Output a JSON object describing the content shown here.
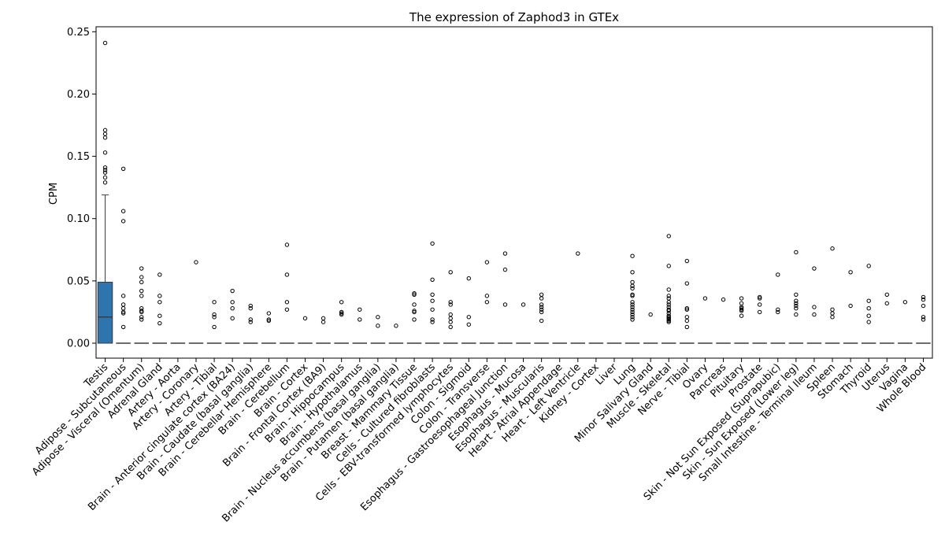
{
  "chart_data": {
    "type": "box",
    "title": "The expression of Zaphod3 in GTEx",
    "xlabel": "",
    "ylabel": "CPM",
    "ylim": [
      -0.012,
      0.254
    ],
    "yticks": [
      0.0,
      0.05,
      0.1,
      0.15,
      0.2,
      0.25
    ],
    "ytick_labels": [
      "0.00",
      "0.05",
      "0.10",
      "0.15",
      "0.20",
      "0.25"
    ],
    "grid": false,
    "box_color": "#2e75b0",
    "categories": [
      "Testis",
      "Adipose - Subcutaneous",
      "Adipose - Visceral (Omentum)",
      "Adrenal Gland",
      "Artery - Aorta",
      "Artery - Coronary",
      "Artery - Tibial",
      "Brain - Anterior cingulate cortex (BA24)",
      "Brain - Caudate (basal ganglia)",
      "Brain - Cerebellar Hemisphere",
      "Brain - Cerebellum",
      "Brain - Cortex",
      "Brain - Frontal Cortex (BA9)",
      "Brain - Hippocampus",
      "Brain - Hypothalamus",
      "Brain - Nucleus accumbens (basal ganglia)",
      "Brain - Putamen (basal ganglia)",
      "Breast - Mammary Tissue",
      "Cells - Cultured fibroblasts",
      "Cells - EBV-transformed lymphocytes",
      "Colon - Sigmoid",
      "Colon - Transverse",
      "Esophagus - Gastroesophageal Junction",
      "Esophagus - Mucosa",
      "Esophagus - Muscularis",
      "Heart - Atrial Appendage",
      "Heart - Left Ventricle",
      "Kidney - Cortex",
      "Liver",
      "Lung",
      "Minor Salivary Gland",
      "Muscle - Skeletal",
      "Nerve - Tibial",
      "Ovary",
      "Pancreas",
      "Pituitary",
      "Prostate",
      "Skin - Not Sun Exposed (Suprapubic)",
      "Skin - Sun Exposed (Lower leg)",
      "Small Intestine - Terminal Ileum",
      "Spleen",
      "Stomach",
      "Thyroid",
      "Uterus",
      "Vagina",
      "Whole Blood"
    ],
    "boxes": [
      {
        "q1": 0.0,
        "median": 0.021,
        "q3": 0.049,
        "whislo": 0.0,
        "whishi": 0.119,
        "fliers": [
          0.241,
          0.171,
          0.168,
          0.165,
          0.153,
          0.141,
          0.139,
          0.137,
          0.133,
          0.129
        ]
      },
      {
        "q1": 0.0,
        "median": 0.0,
        "q3": 0.0,
        "whislo": 0.0,
        "whishi": 0.0,
        "fliers": [
          0.14,
          0.106,
          0.098,
          0.038,
          0.031,
          0.028,
          0.025,
          0.024,
          0.013
        ]
      },
      {
        "q1": 0.0,
        "median": 0.0,
        "q3": 0.0,
        "whislo": 0.0,
        "whishi": 0.0,
        "fliers": [
          0.06,
          0.053,
          0.049,
          0.042,
          0.038,
          0.028,
          0.026,
          0.025,
          0.021,
          0.019
        ]
      },
      {
        "q1": 0.0,
        "median": 0.0,
        "q3": 0.0,
        "whislo": 0.0,
        "whishi": 0.0,
        "fliers": [
          0.055,
          0.038,
          0.033,
          0.022,
          0.016
        ]
      },
      {
        "q1": 0.0,
        "median": 0.0,
        "q3": 0.0,
        "whislo": 0.0,
        "whishi": 0.0,
        "fliers": []
      },
      {
        "q1": 0.0,
        "median": 0.0,
        "q3": 0.0,
        "whislo": 0.0,
        "whishi": 0.0,
        "fliers": [
          0.065
        ]
      },
      {
        "q1": 0.0,
        "median": 0.0,
        "q3": 0.0,
        "whislo": 0.0,
        "whishi": 0.0,
        "fliers": [
          0.033,
          0.023,
          0.021,
          0.013
        ]
      },
      {
        "q1": 0.0,
        "median": 0.0,
        "q3": 0.0,
        "whislo": 0.0,
        "whishi": 0.0,
        "fliers": [
          0.042,
          0.033,
          0.028,
          0.02
        ]
      },
      {
        "q1": 0.0,
        "median": 0.0,
        "q3": 0.0,
        "whislo": 0.0,
        "whishi": 0.0,
        "fliers": [
          0.03,
          0.028,
          0.019,
          0.017
        ]
      },
      {
        "q1": 0.0,
        "median": 0.0,
        "q3": 0.0,
        "whislo": 0.0,
        "whishi": 0.0,
        "fliers": [
          0.024,
          0.019,
          0.018
        ]
      },
      {
        "q1": 0.0,
        "median": 0.0,
        "q3": 0.0,
        "whislo": 0.0,
        "whishi": 0.0,
        "fliers": [
          0.079,
          0.055,
          0.033,
          0.027
        ]
      },
      {
        "q1": 0.0,
        "median": 0.0,
        "q3": 0.0,
        "whislo": 0.0,
        "whishi": 0.0,
        "fliers": [
          0.02
        ]
      },
      {
        "q1": 0.0,
        "median": 0.0,
        "q3": 0.0,
        "whislo": 0.0,
        "whishi": 0.0,
        "fliers": [
          0.02,
          0.017
        ]
      },
      {
        "q1": 0.0,
        "median": 0.0,
        "q3": 0.0,
        "whislo": 0.0,
        "whishi": 0.0,
        "fliers": [
          0.033,
          0.025,
          0.024,
          0.023
        ]
      },
      {
        "q1": 0.0,
        "median": 0.0,
        "q3": 0.0,
        "whislo": 0.0,
        "whishi": 0.0,
        "fliers": [
          0.027,
          0.019
        ]
      },
      {
        "q1": 0.0,
        "median": 0.0,
        "q3": 0.0,
        "whislo": 0.0,
        "whishi": 0.0,
        "fliers": [
          0.021,
          0.014
        ]
      },
      {
        "q1": 0.0,
        "median": 0.0,
        "q3": 0.0,
        "whislo": 0.0,
        "whishi": 0.0,
        "fliers": [
          0.014
        ]
      },
      {
        "q1": 0.0,
        "median": 0.0,
        "q3": 0.0,
        "whislo": 0.0,
        "whishi": 0.0,
        "fliers": [
          0.04,
          0.039,
          0.031,
          0.026,
          0.025,
          0.019
        ]
      },
      {
        "q1": 0.0,
        "median": 0.0,
        "q3": 0.0,
        "whislo": 0.0,
        "whishi": 0.0,
        "fliers": [
          0.08,
          0.051,
          0.039,
          0.034,
          0.027,
          0.019,
          0.017
        ]
      },
      {
        "q1": 0.0,
        "median": 0.0,
        "q3": 0.0,
        "whislo": 0.0,
        "whishi": 0.0,
        "fliers": [
          0.057,
          0.033,
          0.031,
          0.023,
          0.02,
          0.017,
          0.013
        ]
      },
      {
        "q1": 0.0,
        "median": 0.0,
        "q3": 0.0,
        "whislo": 0.0,
        "whishi": 0.0,
        "fliers": [
          0.052,
          0.021,
          0.015
        ]
      },
      {
        "q1": 0.0,
        "median": 0.0,
        "q3": 0.0,
        "whislo": 0.0,
        "whishi": 0.0,
        "fliers": [
          0.065,
          0.038,
          0.033
        ]
      },
      {
        "q1": 0.0,
        "median": 0.0,
        "q3": 0.0,
        "whislo": 0.0,
        "whishi": 0.0,
        "fliers": [
          0.072,
          0.059,
          0.031
        ]
      },
      {
        "q1": 0.0,
        "median": 0.0,
        "q3": 0.0,
        "whislo": 0.0,
        "whishi": 0.0,
        "fliers": [
          0.031
        ]
      },
      {
        "q1": 0.0,
        "median": 0.0,
        "q3": 0.0,
        "whislo": 0.0,
        "whishi": 0.0,
        "fliers": [
          0.039,
          0.036,
          0.031,
          0.029,
          0.027,
          0.025,
          0.018
        ]
      },
      {
        "q1": 0.0,
        "median": 0.0,
        "q3": 0.0,
        "whislo": 0.0,
        "whishi": 0.0,
        "fliers": []
      },
      {
        "q1": 0.0,
        "median": 0.0,
        "q3": 0.0,
        "whislo": 0.0,
        "whishi": 0.0,
        "fliers": [
          0.072
        ]
      },
      {
        "q1": 0.0,
        "median": 0.0,
        "q3": 0.0,
        "whislo": 0.0,
        "whishi": 0.0,
        "fliers": []
      },
      {
        "q1": 0.0,
        "median": 0.0,
        "q3": 0.0,
        "whislo": 0.0,
        "whishi": 0.0,
        "fliers": []
      },
      {
        "q1": 0.0,
        "median": 0.0,
        "q3": 0.0,
        "whislo": 0.0,
        "whishi": 0.0,
        "fliers": [
          0.07,
          0.057,
          0.049,
          0.046,
          0.044,
          0.039,
          0.038,
          0.033,
          0.031,
          0.029,
          0.027,
          0.025,
          0.023,
          0.021,
          0.019
        ]
      },
      {
        "q1": 0.0,
        "median": 0.0,
        "q3": 0.0,
        "whislo": 0.0,
        "whishi": 0.0,
        "fliers": [
          0.023
        ]
      },
      {
        "q1": 0.0,
        "median": 0.0,
        "q3": 0.0,
        "whislo": 0.0,
        "whishi": 0.0,
        "fliers": [
          0.086,
          0.062,
          0.043,
          0.038,
          0.036,
          0.033,
          0.031,
          0.029,
          0.027,
          0.026,
          0.024,
          0.022,
          0.021,
          0.02,
          0.019,
          0.018,
          0.017
        ]
      },
      {
        "q1": 0.0,
        "median": 0.0,
        "q3": 0.0,
        "whislo": 0.0,
        "whishi": 0.0,
        "fliers": [
          0.066,
          0.048,
          0.028,
          0.027,
          0.021,
          0.018,
          0.013
        ]
      },
      {
        "q1": 0.0,
        "median": 0.0,
        "q3": 0.0,
        "whislo": 0.0,
        "whishi": 0.0,
        "fliers": [
          0.036
        ]
      },
      {
        "q1": 0.0,
        "median": 0.0,
        "q3": 0.0,
        "whislo": 0.0,
        "whishi": 0.0,
        "fliers": [
          0.035
        ]
      },
      {
        "q1": 0.0,
        "median": 0.0,
        "q3": 0.0,
        "whislo": 0.0,
        "whishi": 0.0,
        "fliers": [
          0.036,
          0.032,
          0.029,
          0.028,
          0.027,
          0.026,
          0.022
        ]
      },
      {
        "q1": 0.0,
        "median": 0.0,
        "q3": 0.0,
        "whislo": 0.0,
        "whishi": 0.0,
        "fliers": [
          0.037,
          0.036,
          0.031,
          0.025
        ]
      },
      {
        "q1": 0.0,
        "median": 0.0,
        "q3": 0.0,
        "whislo": 0.0,
        "whishi": 0.0,
        "fliers": [
          0.055,
          0.027,
          0.025
        ]
      },
      {
        "q1": 0.0,
        "median": 0.0,
        "q3": 0.0,
        "whislo": 0.0,
        "whishi": 0.0,
        "fliers": [
          0.073,
          0.039,
          0.034,
          0.032,
          0.03,
          0.028,
          0.023
        ]
      },
      {
        "q1": 0.0,
        "median": 0.0,
        "q3": 0.0,
        "whislo": 0.0,
        "whishi": 0.0,
        "fliers": [
          0.06,
          0.029,
          0.023
        ]
      },
      {
        "q1": 0.0,
        "median": 0.0,
        "q3": 0.0,
        "whislo": 0.0,
        "whishi": 0.0,
        "fliers": [
          0.076,
          0.027,
          0.024,
          0.021
        ]
      },
      {
        "q1": 0.0,
        "median": 0.0,
        "q3": 0.0,
        "whislo": 0.0,
        "whishi": 0.0,
        "fliers": [
          0.057,
          0.03
        ]
      },
      {
        "q1": 0.0,
        "median": 0.0,
        "q3": 0.0,
        "whislo": 0.0,
        "whishi": 0.0,
        "fliers": [
          0.062,
          0.034,
          0.028,
          0.022,
          0.017
        ]
      },
      {
        "q1": 0.0,
        "median": 0.0,
        "q3": 0.0,
        "whislo": 0.0,
        "whishi": 0.0,
        "fliers": [
          0.039,
          0.032
        ]
      },
      {
        "q1": 0.0,
        "median": 0.0,
        "q3": 0.0,
        "whislo": 0.0,
        "whishi": 0.0,
        "fliers": [
          0.033
        ]
      },
      {
        "q1": 0.0,
        "median": 0.0,
        "q3": 0.0,
        "whislo": 0.0,
        "whishi": 0.0,
        "fliers": [
          0.037,
          0.035,
          0.03,
          0.021,
          0.019
        ]
      }
    ]
  }
}
